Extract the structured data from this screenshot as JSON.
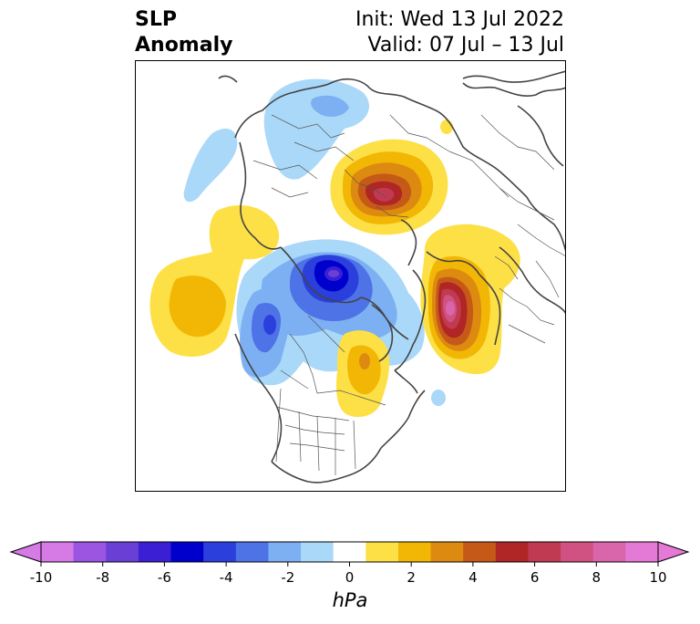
{
  "title": {
    "left_line1": "SLP",
    "left_line2": "Anomaly",
    "init": "Init: Wed 13 Jul 2022",
    "valid": "Valid: 07 Jul – 13 Jul"
  },
  "colorbar": {
    "unit": "hPa",
    "ticks": [
      "-10",
      "-8",
      "-6",
      "-4",
      "-2",
      "0",
      "2",
      "4",
      "6",
      "8",
      "10"
    ],
    "levels": [
      "#d67ae6",
      "#9b55e0",
      "#6a3fd6",
      "#3a1fd4",
      "#0000cc",
      "#2a3fdc",
      "#4e73e6",
      "#7db0f2",
      "#aad8f8",
      "#ffffff",
      "#fde046",
      "#f2b705",
      "#dd8a10",
      "#c55a18",
      "#b02525",
      "#c03a52",
      "#cf5282",
      "#d966ab",
      "#e47ad6"
    ],
    "extend_low_color": "#d67ae6",
    "extend_high_color": "#e47ad6"
  },
  "map": {
    "projection": "polar stereographic (Northern Hemisphere)",
    "features": [
      {
        "name": "north-pacific-high",
        "sign": "positive"
      },
      {
        "name": "ural-siberia-high",
        "sign": "positive"
      },
      {
        "name": "north-atlantic-high",
        "sign": "positive"
      },
      {
        "name": "eastern-canada-high",
        "sign": "positive"
      },
      {
        "name": "arctic-low",
        "sign": "negative"
      },
      {
        "name": "gulf-of-alaska-low",
        "sign": "negative"
      },
      {
        "name": "central-asia-low",
        "sign": "negative"
      }
    ]
  }
}
